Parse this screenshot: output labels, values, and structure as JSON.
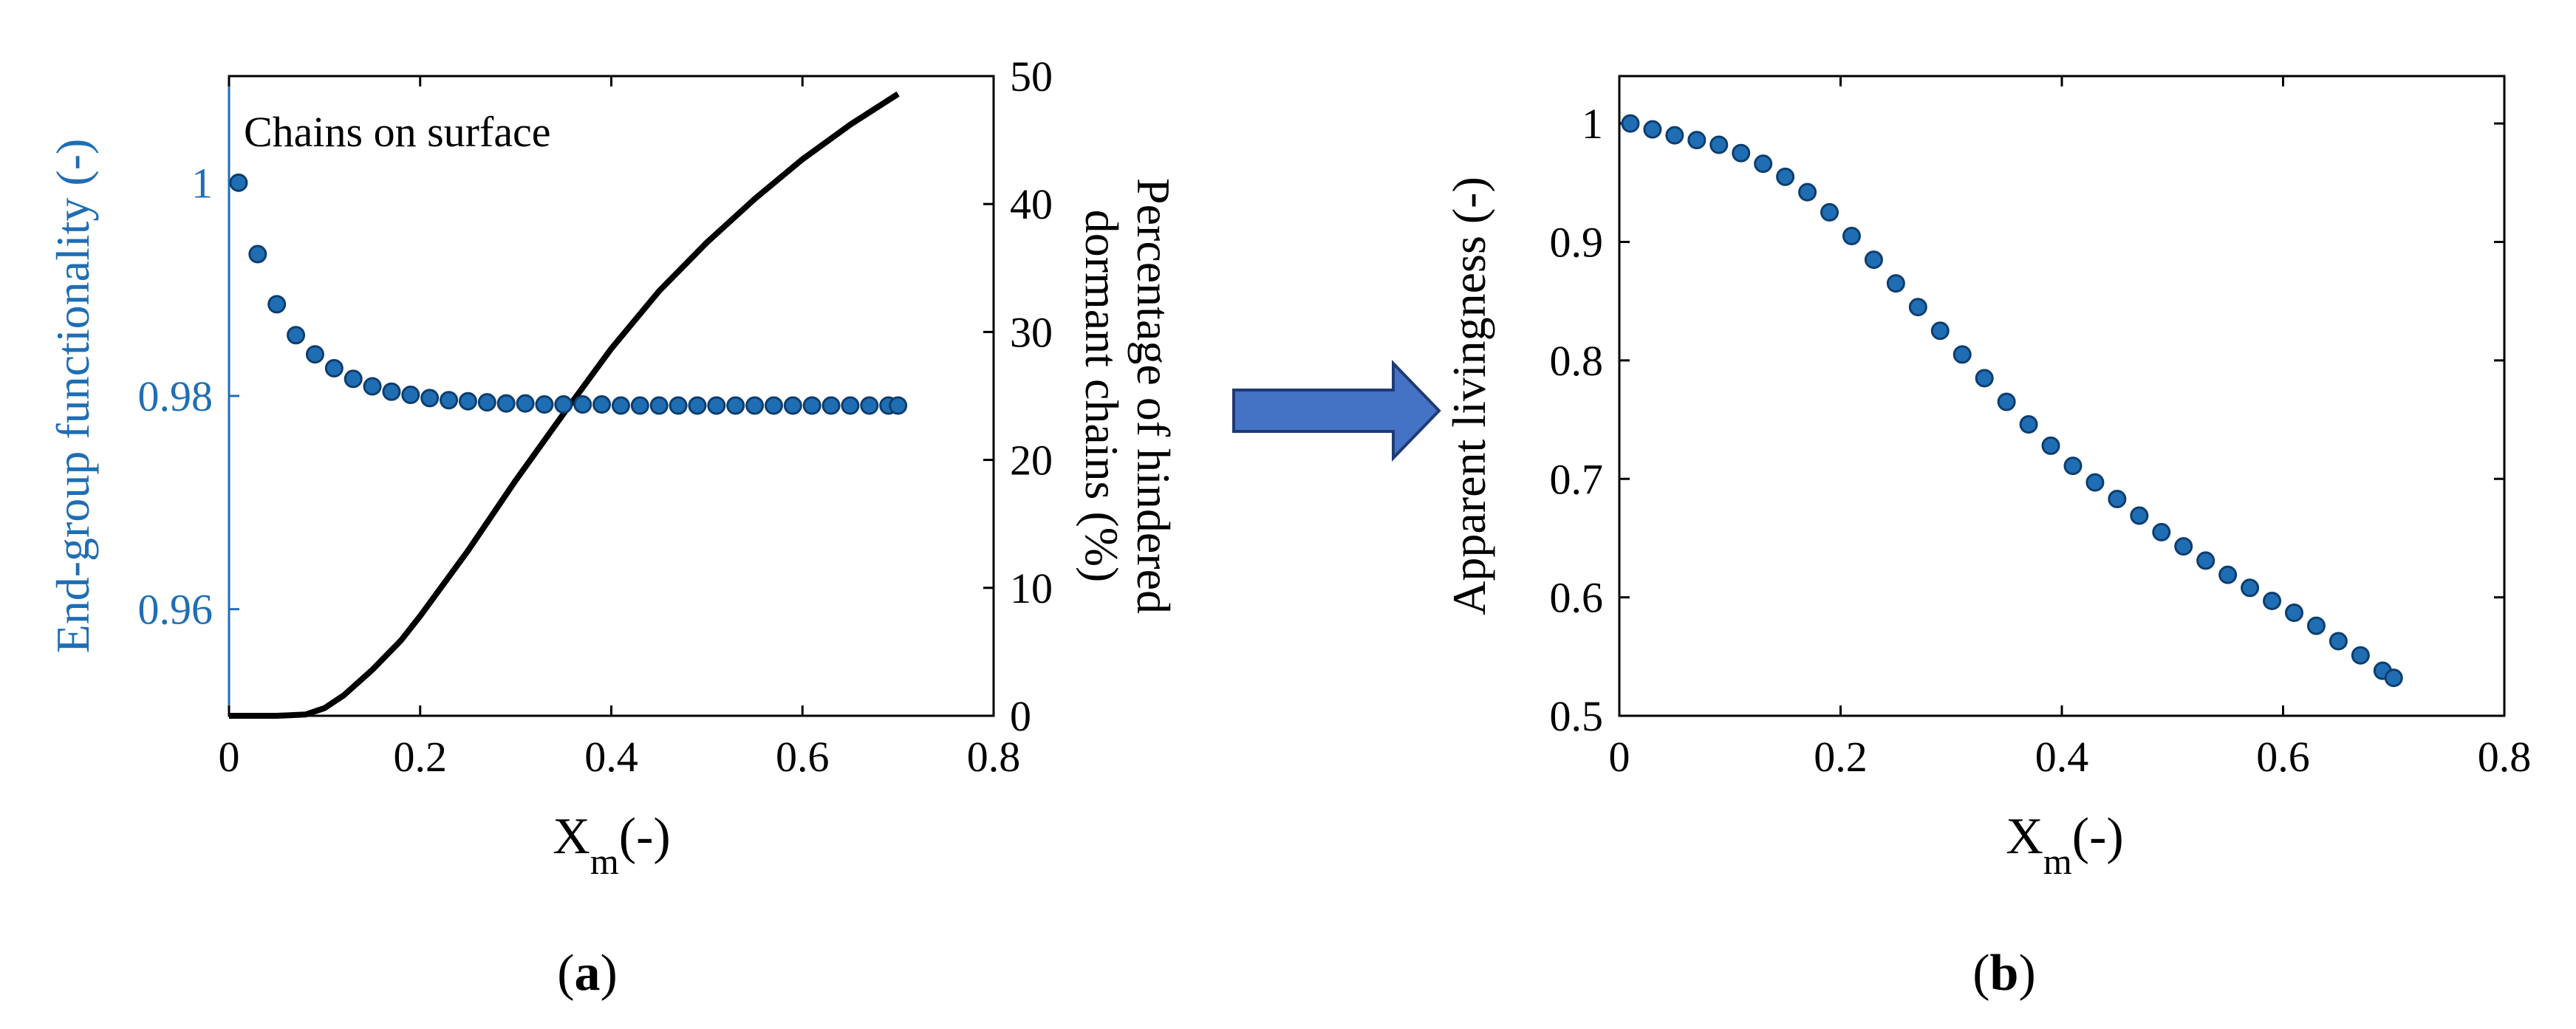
{
  "chart_data": [
    {
      "panel": "a",
      "type": "scatter",
      "caption_label": "a",
      "annotation": "Chains on surface",
      "xlabel_main": "X",
      "xlabel_sub": "m",
      "xlabel_suffix": "(-)",
      "xlim": [
        0,
        0.8
      ],
      "xticks": [
        0,
        0.2,
        0.4,
        0.6,
        0.8
      ],
      "xtick_labels": [
        "0",
        "0.2",
        "0.4",
        "0.6",
        "0.8"
      ],
      "ylabel_left": "End-group functionality (-)",
      "ylim_left": [
        0.95,
        1.01
      ],
      "yticks_left": [
        0.96,
        0.98,
        1.0
      ],
      "ytick_labels_left": [
        "0.96",
        "0.98",
        "1"
      ],
      "ylabel_right_line1": "Percentage of hindered",
      "ylabel_right_line2": "dormant chains (%)",
      "ylim_right": [
        0,
        50
      ],
      "yticks_right": [
        0,
        10,
        20,
        30,
        40,
        50
      ],
      "ytick_labels_right": [
        "0",
        "10",
        "20",
        "30",
        "40",
        "50"
      ],
      "series": [
        {
          "name": "End-group functionality",
          "axis": "left",
          "style": "markers",
          "color": "#1f6eb4",
          "x": [
            0.01,
            0.03,
            0.05,
            0.07,
            0.09,
            0.11,
            0.13,
            0.15,
            0.17,
            0.19,
            0.21,
            0.23,
            0.25,
            0.27,
            0.29,
            0.31,
            0.33,
            0.35,
            0.37,
            0.39,
            0.41,
            0.43,
            0.45,
            0.47,
            0.49,
            0.51,
            0.53,
            0.55,
            0.57,
            0.59,
            0.61,
            0.63,
            0.65,
            0.67,
            0.69,
            0.7
          ],
          "y": [
            1.0,
            0.9933,
            0.9886,
            0.9857,
            0.9839,
            0.9826,
            0.9816,
            0.9809,
            0.9804,
            0.9801,
            0.9798,
            0.9796,
            0.9795,
            0.9794,
            0.9793,
            0.9793,
            0.9792,
            0.9792,
            0.9792,
            0.9792,
            0.9791,
            0.9791,
            0.9791,
            0.9791,
            0.9791,
            0.9791,
            0.9791,
            0.9791,
            0.9791,
            0.9791,
            0.9791,
            0.9791,
            0.9791,
            0.9791,
            0.9791,
            0.9791
          ]
        },
        {
          "name": "Percentage of hindered dormant chains",
          "axis": "right",
          "style": "line",
          "color": "#000000",
          "x": [
            0.0,
            0.05,
            0.08,
            0.1,
            0.12,
            0.15,
            0.18,
            0.2,
            0.25,
            0.3,
            0.35,
            0.4,
            0.45,
            0.5,
            0.55,
            0.6,
            0.65,
            0.7
          ],
          "y": [
            0,
            0,
            0.1,
            0.6,
            1.6,
            3.6,
            5.9,
            7.8,
            12.9,
            18.4,
            23.6,
            28.7,
            33.2,
            37.0,
            40.4,
            43.5,
            46.2,
            48.6
          ]
        }
      ]
    },
    {
      "panel": "b",
      "type": "scatter",
      "caption_label": "b",
      "xlabel_main": "X",
      "xlabel_sub": "m",
      "xlabel_suffix": "(-)",
      "xlim": [
        0,
        0.8
      ],
      "xticks": [
        0,
        0.2,
        0.4,
        0.6,
        0.8
      ],
      "xtick_labels": [
        "0",
        "0.2",
        "0.4",
        "0.6",
        "0.8"
      ],
      "ylabel": "Apparent livingness (-)",
      "ylim": [
        0.5,
        1.04
      ],
      "yticks": [
        0.5,
        0.6,
        0.7,
        0.8,
        0.9,
        1.0
      ],
      "ytick_labels": [
        "0.5",
        "0.6",
        "0.7",
        "0.8",
        "0.9",
        "1"
      ],
      "series": [
        {
          "name": "Apparent livingness",
          "style": "markers",
          "color": "#1f6eb4",
          "x": [
            0.01,
            0.03,
            0.05,
            0.07,
            0.09,
            0.11,
            0.13,
            0.15,
            0.17,
            0.19,
            0.21,
            0.23,
            0.25,
            0.27,
            0.29,
            0.31,
            0.33,
            0.35,
            0.37,
            0.39,
            0.41,
            0.43,
            0.45,
            0.47,
            0.49,
            0.51,
            0.53,
            0.55,
            0.57,
            0.59,
            0.61,
            0.63,
            0.65,
            0.67,
            0.69,
            0.7
          ],
          "y": [
            1.0,
            0.995,
            0.99,
            0.986,
            0.982,
            0.975,
            0.966,
            0.955,
            0.942,
            0.925,
            0.905,
            0.885,
            0.865,
            0.845,
            0.825,
            0.805,
            0.785,
            0.765,
            0.746,
            0.728,
            0.711,
            0.697,
            0.683,
            0.669,
            0.655,
            0.643,
            0.631,
            0.619,
            0.608,
            0.597,
            0.587,
            0.576,
            0.563,
            0.551,
            0.538,
            0.532
          ]
        }
      ]
    }
  ]
}
